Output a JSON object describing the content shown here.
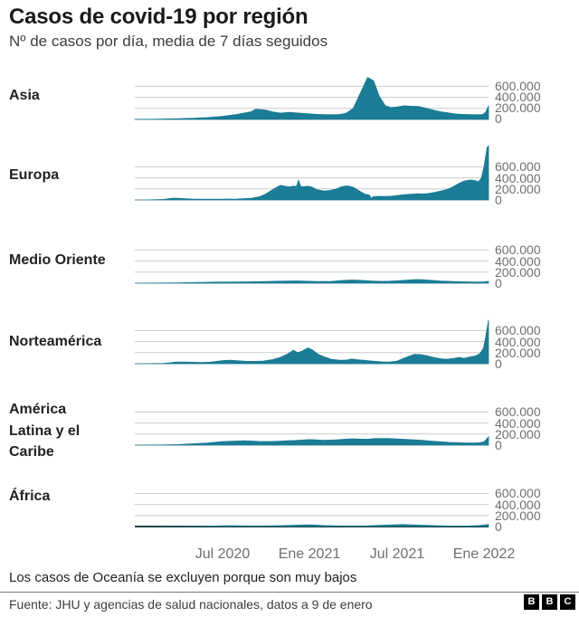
{
  "header": {
    "title": "Casos de covid-19 por región",
    "subtitle": "Nº de casos por día, media de 7 días seguidos"
  },
  "footer": {
    "note": "Los casos de Oceanía se excluyen porque son muy bajos",
    "source": "Fuente: JHU y agencias de salud nacionales, datos a 9 de enero",
    "logo_letters": [
      "B",
      "B",
      "C"
    ]
  },
  "colors": {
    "area_fill": "#1a7c95",
    "gridline": "#cccccc",
    "baseline": "#b0b0b0",
    "bottom_axis": "#222222",
    "text_dark": "#222222",
    "text_gray": "#6f6f73"
  },
  "chart_data": {
    "type": "area",
    "title": "Casos de covid-19 por región",
    "subtitle": "Nº de casos por día, media de 7 días seguidos",
    "grid": true,
    "legend": false,
    "x_axis": {
      "tick_labels": [
        "Jul 2020",
        "Ene 2021",
        "Jul 2021",
        "Ene 2022"
      ],
      "tick_months_from_jan2020": [
        6,
        12,
        18,
        24
      ],
      "domain_months_from_jan2020": [
        0,
        24.3
      ]
    },
    "y_axis": {
      "tick_labels": [
        "600.000",
        "400.000",
        "200.000",
        "0"
      ],
      "tick_values": [
        600000,
        400000,
        200000,
        0
      ],
      "label_position": "right"
    },
    "series": [
      {
        "region": "Asia",
        "points_month_value_thousands": [
          [
            0,
            1
          ],
          [
            1,
            4
          ],
          [
            2,
            8
          ],
          [
            3,
            14
          ],
          [
            4,
            22
          ],
          [
            5,
            35
          ],
          [
            6,
            55
          ],
          [
            7,
            90
          ],
          [
            8,
            140
          ],
          [
            8.3,
            185
          ],
          [
            9,
            170
          ],
          [
            9.5,
            135
          ],
          [
            10,
            115
          ],
          [
            10.6,
            128
          ],
          [
            11,
            120
          ],
          [
            11.5,
            110
          ],
          [
            12,
            100
          ],
          [
            12.5,
            92
          ],
          [
            13,
            88
          ],
          [
            13.5,
            86
          ],
          [
            14,
            90
          ],
          [
            14.5,
            110
          ],
          [
            15,
            200
          ],
          [
            15.5,
            480
          ],
          [
            16,
            760
          ],
          [
            16.4,
            700
          ],
          [
            16.8,
            420
          ],
          [
            17.2,
            250
          ],
          [
            17.6,
            215
          ],
          [
            18,
            225
          ],
          [
            18.5,
            248
          ],
          [
            19,
            240
          ],
          [
            19.5,
            235
          ],
          [
            20,
            205
          ],
          [
            20.5,
            170
          ],
          [
            21,
            140
          ],
          [
            21.5,
            120
          ],
          [
            22,
            100
          ],
          [
            22.5,
            92
          ],
          [
            23,
            88
          ],
          [
            23.5,
            85
          ],
          [
            23.9,
            90
          ],
          [
            24.1,
            130
          ],
          [
            24.3,
            250
          ]
        ]
      },
      {
        "region": "Europa",
        "points_month_value_thousands": [
          [
            0,
            0
          ],
          [
            1,
            1
          ],
          [
            2,
            10
          ],
          [
            2.6,
            32
          ],
          [
            3,
            30
          ],
          [
            3.5,
            22
          ],
          [
            4,
            17
          ],
          [
            5,
            13
          ],
          [
            6,
            13
          ],
          [
            7,
            17
          ],
          [
            8,
            30
          ],
          [
            8.6,
            60
          ],
          [
            9,
            110
          ],
          [
            9.5,
            190
          ],
          [
            10,
            265
          ],
          [
            10.3,
            250
          ],
          [
            10.6,
            235
          ],
          [
            10.9,
            250
          ],
          [
            11.1,
            245
          ],
          [
            11.25,
            355
          ],
          [
            11.4,
            245
          ],
          [
            11.6,
            240
          ],
          [
            11.9,
            250
          ],
          [
            12.2,
            230
          ],
          [
            12.5,
            185
          ],
          [
            13,
            160
          ],
          [
            13.4,
            172
          ],
          [
            13.8,
            195
          ],
          [
            14.2,
            240
          ],
          [
            14.6,
            255
          ],
          [
            15,
            230
          ],
          [
            15.4,
            165
          ],
          [
            15.8,
            105
          ],
          [
            16.1,
            90
          ],
          [
            16.25,
            30
          ],
          [
            16.4,
            60
          ],
          [
            16.8,
            65
          ],
          [
            17.2,
            62
          ],
          [
            17.6,
            68
          ],
          [
            18,
            80
          ],
          [
            18.5,
            95
          ],
          [
            19,
            105
          ],
          [
            19.4,
            112
          ],
          [
            19.8,
            108
          ],
          [
            20.2,
            118
          ],
          [
            20.6,
            135
          ],
          [
            21,
            160
          ],
          [
            21.4,
            185
          ],
          [
            21.8,
            230
          ],
          [
            22.2,
            290
          ],
          [
            22.6,
            340
          ],
          [
            23,
            360
          ],
          [
            23.3,
            355
          ],
          [
            23.6,
            330
          ],
          [
            23.8,
            390
          ],
          [
            24,
            620
          ],
          [
            24.2,
            950
          ],
          [
            24.3,
            980
          ]
        ]
      },
      {
        "region": "Medio Oriente",
        "points_month_value_thousands": [
          [
            0,
            0
          ],
          [
            1,
            1
          ],
          [
            2,
            3
          ],
          [
            3,
            6
          ],
          [
            4,
            12
          ],
          [
            5,
            16
          ],
          [
            6,
            19
          ],
          [
            7,
            21
          ],
          [
            8,
            24
          ],
          [
            9,
            29
          ],
          [
            10,
            36
          ],
          [
            10.5,
            40
          ],
          [
            11,
            41
          ],
          [
            11.5,
            38
          ],
          [
            12,
            34
          ],
          [
            12.5,
            30
          ],
          [
            13,
            29
          ],
          [
            13.5,
            33
          ],
          [
            14,
            42
          ],
          [
            14.5,
            52
          ],
          [
            15,
            57
          ],
          [
            15.3,
            55
          ],
          [
            15.8,
            46
          ],
          [
            16.3,
            38
          ],
          [
            17,
            33
          ],
          [
            17.5,
            36
          ],
          [
            18,
            42
          ],
          [
            18.7,
            55
          ],
          [
            19.3,
            65
          ],
          [
            19.8,
            62
          ],
          [
            20.3,
            52
          ],
          [
            21,
            40
          ],
          [
            21.7,
            32
          ],
          [
            22.3,
            26
          ],
          [
            23,
            22
          ],
          [
            23.6,
            20
          ],
          [
            24,
            24
          ],
          [
            24.3,
            34
          ]
        ]
      },
      {
        "region": "Norteamérica",
        "points_month_value_thousands": [
          [
            0,
            0
          ],
          [
            1,
            1
          ],
          [
            2,
            5
          ],
          [
            2.8,
            28
          ],
          [
            3.2,
            30
          ],
          [
            4,
            27
          ],
          [
            4.6,
            23
          ],
          [
            5.2,
            28
          ],
          [
            6,
            55
          ],
          [
            6.5,
            64
          ],
          [
            7,
            56
          ],
          [
            7.6,
            45
          ],
          [
            8.2,
            42
          ],
          [
            8.8,
            48
          ],
          [
            9.4,
            70
          ],
          [
            10,
            115
          ],
          [
            10.5,
            175
          ],
          [
            10.9,
            245
          ],
          [
            11.2,
            200
          ],
          [
            11.5,
            230
          ],
          [
            11.9,
            285
          ],
          [
            12.2,
            250
          ],
          [
            12.6,
            170
          ],
          [
            13,
            125
          ],
          [
            13.5,
            80
          ],
          [
            14,
            65
          ],
          [
            14.5,
            62
          ],
          [
            14.9,
            85
          ],
          [
            15.3,
            72
          ],
          [
            15.8,
            60
          ],
          [
            16.3,
            48
          ],
          [
            17,
            32
          ],
          [
            17.5,
            30
          ],
          [
            18,
            45
          ],
          [
            18.6,
            110
          ],
          [
            19.2,
            170
          ],
          [
            19.6,
            165
          ],
          [
            20,
            150
          ],
          [
            20.5,
            115
          ],
          [
            21,
            90
          ],
          [
            21.4,
            80
          ],
          [
            21.9,
            95
          ],
          [
            22.3,
            115
          ],
          [
            22.6,
            95
          ],
          [
            23,
            120
          ],
          [
            23.4,
            140
          ],
          [
            23.7,
            180
          ],
          [
            23.95,
            280
          ],
          [
            24.1,
            480
          ],
          [
            24.3,
            790
          ]
        ]
      },
      {
        "region": "América Latina y el Caribe",
        "points_month_value_thousands": [
          [
            0,
            0
          ],
          [
            1,
            1
          ],
          [
            2,
            3
          ],
          [
            3,
            10
          ],
          [
            4,
            24
          ],
          [
            5,
            40
          ],
          [
            6,
            62
          ],
          [
            6.4,
            68
          ],
          [
            7,
            74
          ],
          [
            7.5,
            80
          ],
          [
            8,
            74
          ],
          [
            8.5,
            68
          ],
          [
            9,
            66
          ],
          [
            9.5,
            68
          ],
          [
            10,
            72
          ],
          [
            10.5,
            78
          ],
          [
            11,
            84
          ],
          [
            11.5,
            92
          ],
          [
            12,
            100
          ],
          [
            12.4,
            96
          ],
          [
            13,
            88
          ],
          [
            13.6,
            92
          ],
          [
            14,
            98
          ],
          [
            14.5,
            108
          ],
          [
            15,
            115
          ],
          [
            15.4,
            110
          ],
          [
            16,
            106
          ],
          [
            16.5,
            122
          ],
          [
            16.9,
            118
          ],
          [
            17.4,
            122
          ],
          [
            18,
            112
          ],
          [
            18.6,
            103
          ],
          [
            19.2,
            96
          ],
          [
            19.8,
            85
          ],
          [
            20.4,
            72
          ],
          [
            21,
            60
          ],
          [
            21.6,
            50
          ],
          [
            22.2,
            44
          ],
          [
            22.8,
            40
          ],
          [
            23.3,
            38
          ],
          [
            23.7,
            42
          ],
          [
            24,
            60
          ],
          [
            24.3,
            150
          ]
        ]
      },
      {
        "region": "África",
        "points_month_value_thousands": [
          [
            0,
            0
          ],
          [
            1,
            0
          ],
          [
            2,
            1
          ],
          [
            3,
            3
          ],
          [
            4,
            5
          ],
          [
            5,
            9
          ],
          [
            6,
            14
          ],
          [
            6.5,
            17
          ],
          [
            7,
            15
          ],
          [
            8,
            11
          ],
          [
            9,
            11
          ],
          [
            10,
            16
          ],
          [
            11,
            24
          ],
          [
            11.8,
            31
          ],
          [
            12.3,
            28
          ],
          [
            13,
            18
          ],
          [
            14,
            11
          ],
          [
            15,
            11
          ],
          [
            16,
            14
          ],
          [
            17,
            24
          ],
          [
            18,
            33
          ],
          [
            18.4,
            36
          ],
          [
            19,
            30
          ],
          [
            20,
            22
          ],
          [
            21,
            14
          ],
          [
            22,
            9
          ],
          [
            23,
            12
          ],
          [
            23.7,
            20
          ],
          [
            24,
            28
          ],
          [
            24.3,
            38
          ]
        ]
      }
    ]
  }
}
